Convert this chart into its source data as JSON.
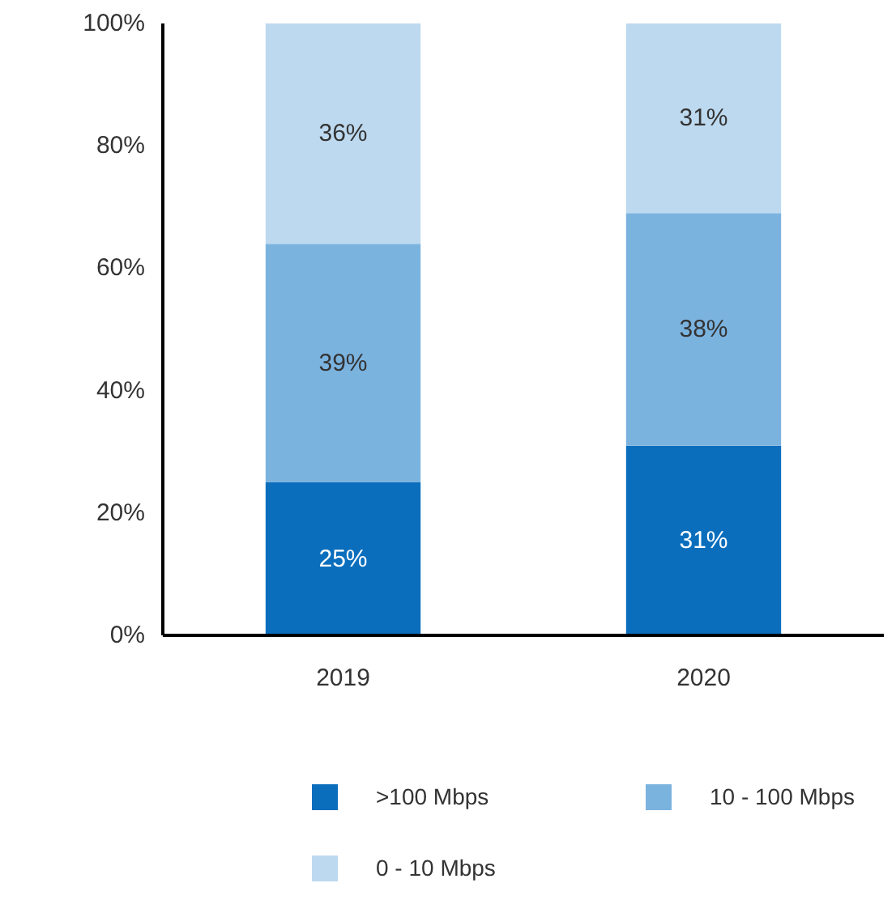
{
  "chart_data": {
    "type": "bar",
    "stacked": true,
    "categories": [
      "2019",
      "2020"
    ],
    "series": [
      {
        "name": ">100 Mbps",
        "color": "#0a6ebd",
        "values": [
          25,
          31
        ],
        "value_labels": [
          "25%",
          "31%"
        ]
      },
      {
        "name": "10 - 100 Mbps",
        "color": "#7bb3df",
        "values": [
          39,
          38
        ],
        "value_labels": [
          "39%",
          "38%"
        ]
      },
      {
        "name": "0 - 10 Mbps",
        "color": "#bdd9ef",
        "values": [
          36,
          31
        ],
        "value_labels": [
          "36%",
          "31%"
        ]
      }
    ],
    "ylim": [
      0,
      100
    ],
    "yticks": [
      {
        "value": 0,
        "label": "0%"
      },
      {
        "value": 20,
        "label": "20%"
      },
      {
        "value": 40,
        "label": "40%"
      },
      {
        "value": 60,
        "label": "60%"
      },
      {
        "value": 80,
        "label": "80%"
      },
      {
        "value": 100,
        "label": "100%"
      }
    ],
    "grid": false,
    "legend": "bottom"
  }
}
